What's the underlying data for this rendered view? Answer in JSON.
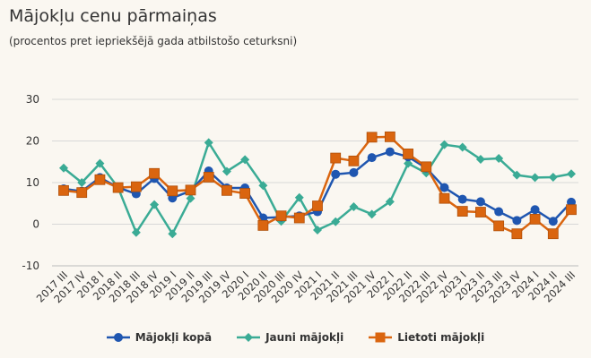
{
  "chart_data": {
    "type": "line",
    "title": "Mājokļu cenu pārmaiņas",
    "subtitle": "(procentos pret iepriekšējā gada atbilstošo ceturksni)",
    "categories": [
      "2017 III",
      "2017 IV",
      "2018 I",
      "2018 II",
      "2018 III",
      "2018 IV",
      "2019 I",
      "2019 II",
      "2019 III",
      "2019 IV",
      "2020 I",
      "2020 II",
      "2020 III",
      "2020 IV",
      "2021 I",
      "2021 II",
      "2021 III",
      "2021 IV",
      "2022 I",
      "2022 II",
      "2022 III",
      "2022 IV",
      "2023 I",
      "2023 II",
      "2023 III",
      "2023 IV",
      "2024 I",
      "2024 II",
      "2024 III"
    ],
    "ylim": [
      -10,
      30
    ],
    "yticks": [
      -10,
      0,
      10,
      20,
      30
    ],
    "grid": true,
    "legend": "bottom",
    "series": [
      {
        "name": "Mājokļi kopā",
        "color": "#1f56b0",
        "marker": "circle",
        "values": [
          8.5,
          7.9,
          11.2,
          8.8,
          7.3,
          11.0,
          6.3,
          8.0,
          12.8,
          8.7,
          8.7,
          1.5,
          1.7,
          2.0,
          3.0,
          12.0,
          12.4,
          16.0,
          17.4,
          16.2,
          13.5,
          8.8,
          6.0,
          5.4,
          3.0,
          0.9,
          3.5,
          0.7,
          5.3
        ]
      },
      {
        "name": "Jauni mājokļi",
        "color": "#3aab95",
        "marker": "diamond",
        "values": [
          13.5,
          10.0,
          14.6,
          8.8,
          -2.0,
          4.7,
          -2.3,
          6.2,
          19.6,
          12.7,
          15.5,
          9.3,
          0.7,
          6.4,
          -1.4,
          0.6,
          4.2,
          2.4,
          5.4,
          14.6,
          12.3,
          19.1,
          18.5,
          15.6,
          15.8,
          11.8,
          11.2,
          11.3,
          12.1
        ]
      },
      {
        "name": "Lietoti mājokļi",
        "color": "#da650f",
        "marker": "square",
        "values": [
          8.1,
          7.6,
          10.7,
          8.8,
          9.0,
          12.2,
          8.0,
          8.2,
          11.3,
          8.1,
          7.4,
          -0.3,
          2.0,
          1.5,
          4.4,
          15.9,
          15.2,
          20.9,
          21.0,
          16.9,
          13.8,
          6.2,
          3.1,
          2.9,
          -0.4,
          -2.3,
          1.2,
          -2.3,
          3.5
        ]
      }
    ]
  }
}
